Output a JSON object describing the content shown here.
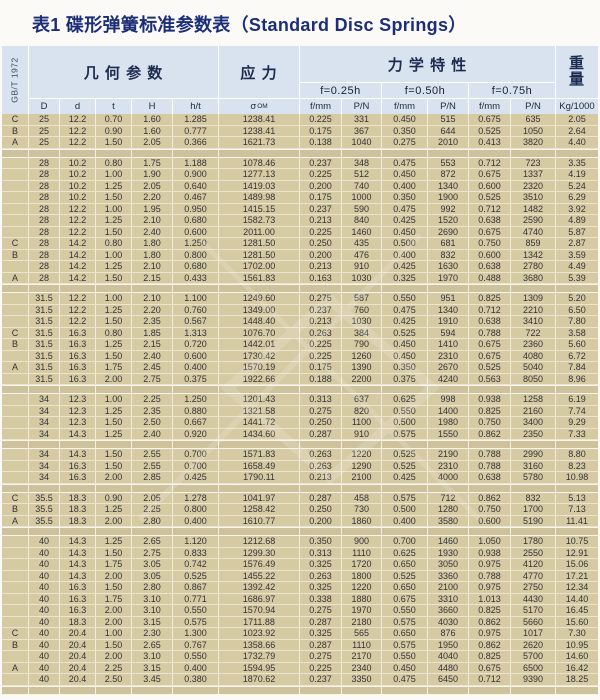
{
  "title": "表1 碟形弹簧标准参数表（Standard Disc Springs）",
  "standard": "GB/T 1972",
  "header": {
    "geometry": "几 何 参 数",
    "stress": "应 力",
    "mechanics": "力 学 特 性",
    "weight": [
      "重",
      "量"
    ],
    "load_levels": [
      "f=0.25h",
      "f=0.50h",
      "f=0.75h"
    ],
    "sigma": {
      "base": "σ",
      "sub": "OM"
    },
    "columns": [
      "D",
      "d",
      "t",
      "H",
      "h/t",
      "",
      "f/mm",
      "P/N",
      "f/mm",
      "P/N",
      "f/mm",
      "P/N",
      "Kg/1000"
    ]
  },
  "table": {
    "groups": [
      [
        [
          "C",
          "25",
          "12.2",
          "0.70",
          "1.60",
          "1.285",
          "1238.41",
          "0.225",
          "331",
          "0.450",
          "515",
          "0.675",
          "635",
          "2.05"
        ],
        [
          "B",
          "25",
          "12.2",
          "0.90",
          "1.60",
          "0.777",
          "1238.41",
          "0.175",
          "367",
          "0.350",
          "644",
          "0.525",
          "1050",
          "2.64"
        ],
        [
          "A",
          "25",
          "12.2",
          "1.50",
          "2.05",
          "0.366",
          "1621.73",
          "0.138",
          "1040",
          "0.275",
          "2010",
          "0.413",
          "3820",
          "4.40"
        ]
      ],
      [
        [
          "",
          "28",
          "10.2",
          "0.80",
          "1.75",
          "1.188",
          "1078.46",
          "0.237",
          "348",
          "0.475",
          "553",
          "0.712",
          "723",
          "3.35"
        ],
        [
          "",
          "28",
          "10.2",
          "1.00",
          "1.90",
          "0.900",
          "1277.13",
          "0.225",
          "512",
          "0.450",
          "872",
          "0.675",
          "1337",
          "4.19"
        ],
        [
          "",
          "28",
          "10.2",
          "1.25",
          "2.05",
          "0.640",
          "1419.03",
          "0.200",
          "740",
          "0.400",
          "1340",
          "0.600",
          "2320",
          "5.24"
        ],
        [
          "",
          "28",
          "10.2",
          "1.50",
          "2.20",
          "0.467",
          "1489.98",
          "0.175",
          "1000",
          "0.350",
          "1900",
          "0.525",
          "3510",
          "6.29"
        ],
        [
          "",
          "28",
          "12.2",
          "1.00",
          "1.95",
          "0.950",
          "1415.15",
          "0.237",
          "590",
          "0.475",
          "992",
          "0.712",
          "1482",
          "3.92"
        ],
        [
          "",
          "28",
          "12.2",
          "1.25",
          "2.10",
          "0.680",
          "1582.73",
          "0.213",
          "840",
          "0.425",
          "1520",
          "0.638",
          "2590",
          "4.89"
        ],
        [
          "",
          "28",
          "12.2",
          "1.50",
          "2.40",
          "0.600",
          "2011.00",
          "0.225",
          "1460",
          "0.450",
          "2690",
          "0.675",
          "4740",
          "5.87"
        ],
        [
          "C",
          "28",
          "14.2",
          "0.80",
          "1.80",
          "1.250",
          "1281.50",
          "0.250",
          "435",
          "0.500",
          "681",
          "0.750",
          "859",
          "2.87"
        ],
        [
          "B",
          "28",
          "14.2",
          "1.00",
          "1.80",
          "0.800",
          "1281.50",
          "0.200",
          "476",
          "0.400",
          "832",
          "0.600",
          "1342",
          "3.59"
        ],
        [
          "",
          "28",
          "14.2",
          "1.25",
          "2.10",
          "0.680",
          "1702.00",
          "0.213",
          "910",
          "0.425",
          "1630",
          "0.638",
          "2780",
          "4.49"
        ],
        [
          "A",
          "28",
          "14.2",
          "1.50",
          "2.15",
          "0.433",
          "1561.83",
          "0.163",
          "1030",
          "0.325",
          "1970",
          "0.488",
          "3680",
          "5.39"
        ]
      ],
      [
        [
          "",
          "31.5",
          "12.2",
          "1.00",
          "2.10",
          "1.100",
          "1249.60",
          "0.275",
          "587",
          "0.550",
          "951",
          "0.825",
          "1309",
          "5.20"
        ],
        [
          "",
          "31.5",
          "12.2",
          "1.25",
          "2.20",
          "0.760",
          "1349.00",
          "0.237",
          "760",
          "0.475",
          "1340",
          "0.712",
          "2210",
          "6.50"
        ],
        [
          "",
          "31.5",
          "12.2",
          "1.50",
          "2.35",
          "0.567",
          "1448.40",
          "0.213",
          "1030",
          "0.425",
          "1910",
          "0.638",
          "3410",
          "7.80"
        ],
        [
          "C",
          "31.5",
          "16.3",
          "0.80",
          "1.85",
          "1.313",
          "1076.70",
          "0.263",
          "384",
          "0.525",
          "594",
          "0.788",
          "722",
          "3.58"
        ],
        [
          "B",
          "31.5",
          "16.3",
          "1.25",
          "2.15",
          "0.720",
          "1442.01",
          "0.225",
          "790",
          "0.450",
          "1410",
          "0.675",
          "2360",
          "5.60"
        ],
        [
          "",
          "31.5",
          "16.3",
          "1.50",
          "2.40",
          "0.600",
          "1730.42",
          "0.225",
          "1260",
          "0.450",
          "2310",
          "0.675",
          "4080",
          "6.72"
        ],
        [
          "A",
          "31.5",
          "16.3",
          "1.75",
          "2.45",
          "0.400",
          "1570.19",
          "0.175",
          "1390",
          "0.350",
          "2670",
          "0.525",
          "5040",
          "7.84"
        ],
        [
          "",
          "31.5",
          "16.3",
          "2.00",
          "2.75",
          "0.375",
          "1922.66",
          "0.188",
          "2200",
          "0.375",
          "4240",
          "0.563",
          "8050",
          "8.96"
        ]
      ],
      [
        [
          "",
          "34",
          "12.3",
          "1.00",
          "2.25",
          "1.250",
          "1201.43",
          "0.313",
          "637",
          "0.625",
          "998",
          "0.938",
          "1258",
          "6.19"
        ],
        [
          "",
          "34",
          "12.3",
          "1.25",
          "2.35",
          "0.880",
          "1321.58",
          "0.275",
          "820",
          "0.550",
          "1400",
          "0.825",
          "2160",
          "7.74"
        ],
        [
          "",
          "34",
          "12.3",
          "1.50",
          "2.50",
          "0.667",
          "1441.72",
          "0.250",
          "1100",
          "0.500",
          "1980",
          "0.750",
          "3400",
          "9.29"
        ],
        [
          "",
          "34",
          "14.3",
          "1.25",
          "2.40",
          "0.920",
          "1434.60",
          "0.287",
          "910",
          "0.575",
          "1550",
          "0.862",
          "2350",
          "7.33"
        ]
      ],
      [
        [
          "",
          "34",
          "14.3",
          "1.50",
          "2.55",
          "0.700",
          "1571.83",
          "0.263",
          "1220",
          "0.525",
          "2190",
          "0.788",
          "2990",
          "8.80"
        ],
        [
          "",
          "34",
          "16.3",
          "1.50",
          "2.55",
          "0.700",
          "1658.49",
          "0.263",
          "1290",
          "0.525",
          "2310",
          "0.788",
          "3160",
          "8.23"
        ],
        [
          "",
          "34",
          "16.3",
          "2.00",
          "2.85",
          "0.425",
          "1790.11",
          "0.213",
          "2100",
          "0.425",
          "4000",
          "0.638",
          "5780",
          "10.98"
        ]
      ],
      [
        [
          "C",
          "35.5",
          "18.3",
          "0.90",
          "2.05",
          "1.278",
          "1041.97",
          "0.287",
          "458",
          "0.575",
          "712",
          "0.862",
          "832",
          "5.13"
        ],
        [
          "B",
          "35.5",
          "18.3",
          "1.25",
          "2.25",
          "0.800",
          "1258.42",
          "0.250",
          "730",
          "0.500",
          "1280",
          "0.750",
          "1700",
          "7.13"
        ],
        [
          "A",
          "35.5",
          "18.3",
          "2.00",
          "2.80",
          "0.400",
          "1610.77",
          "0.200",
          "1860",
          "0.400",
          "3580",
          "0.600",
          "5190",
          "11.41"
        ]
      ],
      [
        [
          "",
          "40",
          "14.3",
          "1.25",
          "2.65",
          "1.120",
          "1212.68",
          "0.350",
          "900",
          "0.700",
          "1460",
          "1.050",
          "1780",
          "10.75"
        ],
        [
          "",
          "40",
          "14.3",
          "1.50",
          "2.75",
          "0.833",
          "1299.30",
          "0.313",
          "1110",
          "0.625",
          "1930",
          "0.938",
          "2550",
          "12.91"
        ],
        [
          "",
          "40",
          "14.3",
          "1.75",
          "3.05",
          "0.742",
          "1576.49",
          "0.325",
          "1720",
          "0.650",
          "3050",
          "0.975",
          "4120",
          "15.06"
        ],
        [
          "",
          "40",
          "14.3",
          "2.00",
          "3.05",
          "0.525",
          "1455.22",
          "0.263",
          "1800",
          "0.525",
          "3360",
          "0.788",
          "4770",
          "17.21"
        ],
        [
          "",
          "40",
          "16.3",
          "1.50",
          "2.80",
          "0.867",
          "1392.42",
          "0.325",
          "1220",
          "0.650",
          "2100",
          "0.975",
          "2750",
          "12.34"
        ],
        [
          "",
          "40",
          "16.3",
          "1.75",
          "3.10",
          "0.771",
          "1686.97",
          "0.338",
          "1880",
          "0.675",
          "3310",
          "1.013",
          "4430",
          "14.40"
        ],
        [
          "",
          "40",
          "16.3",
          "2.00",
          "3.10",
          "0.550",
          "1570.94",
          "0.275",
          "1970",
          "0.550",
          "3660",
          "0.825",
          "5170",
          "16.45"
        ],
        [
          "",
          "40",
          "18.3",
          "2.00",
          "3.15",
          "0.575",
          "1711.88",
          "0.287",
          "2180",
          "0.575",
          "4030",
          "0.862",
          "5660",
          "15.60"
        ],
        [
          "C",
          "40",
          "20.4",
          "1.00",
          "2.30",
          "1.300",
          "1023.92",
          "0.325",
          "565",
          "0.650",
          "876",
          "0.975",
          "1017",
          "7.30"
        ],
        [
          "B",
          "40",
          "20.4",
          "1.50",
          "2.65",
          "0.767",
          "1358.66",
          "0.287",
          "1110",
          "0.575",
          "1950",
          "0.862",
          "2620",
          "10.95"
        ],
        [
          "",
          "40",
          "20.4",
          "2.00",
          "3.10",
          "0.550",
          "1732.79",
          "0.275",
          "2170",
          "0.550",
          "4040",
          "0.825",
          "5700",
          "14.60"
        ],
        [
          "A",
          "40",
          "20.4",
          "2.25",
          "3.15",
          "0.400",
          "1594.95",
          "0.225",
          "2340",
          "0.450",
          "4480",
          "0.675",
          "6500",
          "16.42"
        ],
        [
          "",
          "40",
          "20.4",
          "2.50",
          "3.45",
          "0.380",
          "1870.62",
          "0.237",
          "3350",
          "0.475",
          "6450",
          "0.712",
          "9390",
          "18.25"
        ]
      ]
    ]
  },
  "colors": {
    "title_navy": "#1d2e78",
    "header_blue": "#d8e3ef",
    "row_tan": "#d6caa2",
    "separator_tan": "#cdc29b"
  }
}
